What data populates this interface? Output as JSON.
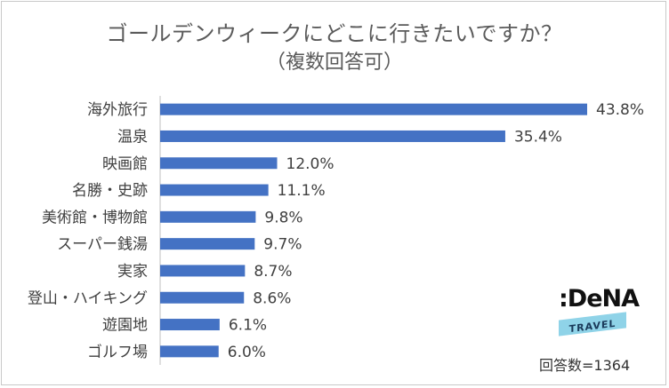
{
  "chart_data": {
    "type": "bar",
    "orientation": "horizontal",
    "title": "ゴールデンウィークにどこに行きたいですか？",
    "subtitle": "（複数回答可）",
    "categories": [
      "海外旅行",
      "温泉",
      "映画館",
      "名勝・史跡",
      "美術館・博物館",
      "スーパー銭湯",
      "実家",
      "登山・ハイキング",
      "遊園地",
      "ゴルフ場"
    ],
    "values": [
      43.8,
      35.4,
      12.0,
      11.1,
      9.8,
      9.7,
      8.7,
      8.6,
      6.1,
      6.0
    ],
    "value_labels": [
      "43.8%",
      "35.4%",
      "12.0%",
      "11.1%",
      "9.8%",
      "9.7%",
      "8.7%",
      "8.6%",
      "6.1%",
      "6.0%"
    ],
    "unit": "%",
    "xlim": [
      0,
      50
    ],
    "grid": false,
    "legend": "none",
    "bar_color": "#4472c4"
  },
  "logo": {
    "main": ":DeNA",
    "band": "TRAVEL",
    "band_color": "#8fd3e8"
  },
  "footnote": "回答数=1364"
}
